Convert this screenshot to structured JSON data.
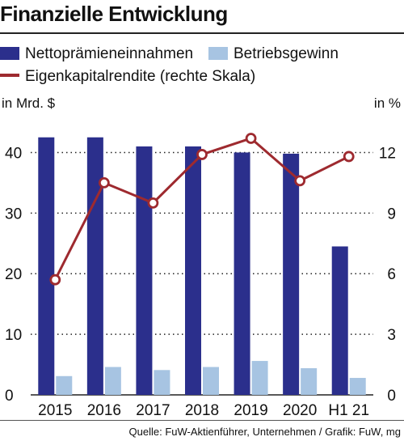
{
  "chart_data": {
    "type": "bar",
    "title": "Finanzielle Entwicklung",
    "categories": [
      "2015",
      "2016",
      "2017",
      "2018",
      "2019",
      "2020",
      "H1 21"
    ],
    "series": [
      {
        "name": "Nettoprämieneinnahmen",
        "type": "bar",
        "axis": "left",
        "color": "#2b2f8c",
        "values": [
          42.5,
          42.5,
          41.0,
          41.0,
          40.0,
          39.8,
          24.5
        ]
      },
      {
        "name": "Betriebsgewinn",
        "type": "bar",
        "axis": "left",
        "color": "#a7c4e2",
        "values": [
          3.1,
          4.6,
          4.1,
          4.6,
          5.6,
          4.4,
          2.8
        ]
      },
      {
        "name": "Eigenkapitalrendite (rechte Skala)",
        "type": "line",
        "axis": "right",
        "color": "#9e2a2f",
        "values": [
          5.7,
          10.5,
          9.5,
          11.9,
          12.7,
          10.6,
          11.8
        ]
      }
    ],
    "ylabel_left": "in Mrd. $",
    "ylabel_right": "in %",
    "ylim_left": [
      0,
      45
    ],
    "ylim_right": [
      0,
      13.5
    ],
    "yticks_left": [
      "0",
      "10",
      "20",
      "30",
      "40"
    ],
    "yticks_right": [
      "0",
      "3",
      "6",
      "9",
      "12"
    ],
    "grid": "dotted horizontal",
    "legend_position": "top"
  },
  "source": "Quelle: FuW-Aktienführer, Unternehmen / Grafik: FuW, mg"
}
